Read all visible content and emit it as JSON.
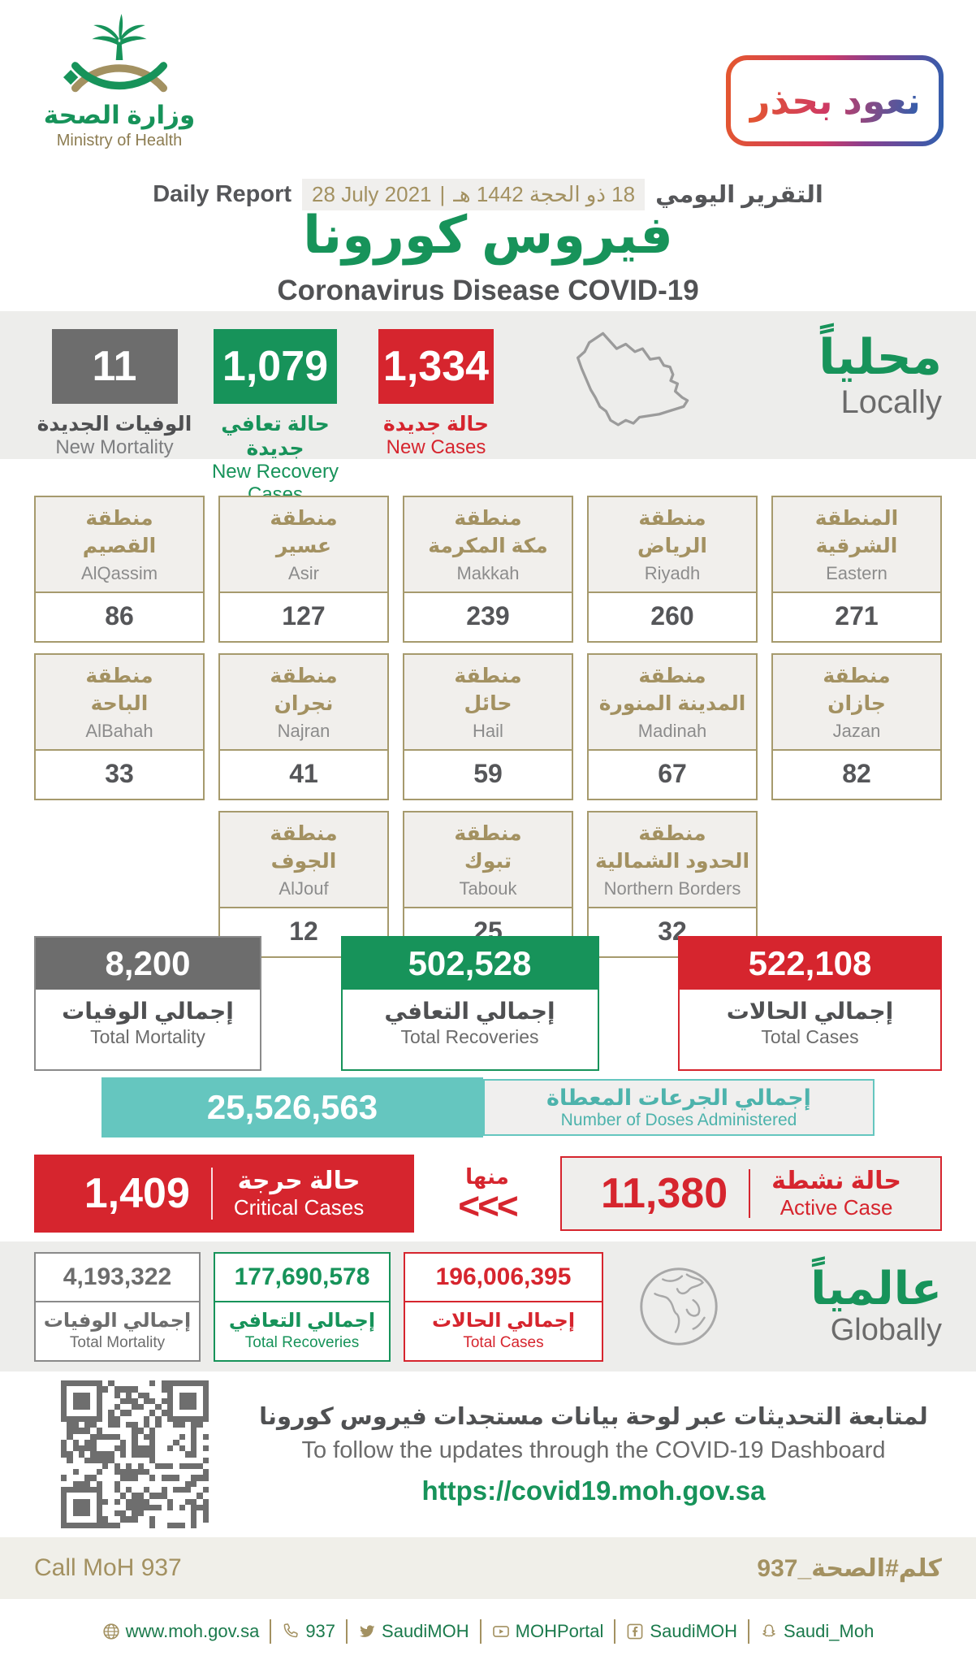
{
  "colors": {
    "green": "#17935a",
    "red": "#d6252e",
    "gold": "#a39161",
    "gray": "#6d6d6d",
    "teal": "#65c6bf"
  },
  "header": {
    "ministry_ar": "وزارة الصحة",
    "ministry_en": "Ministry of Health",
    "badge_ar": "نعود بحذر",
    "daily_report_en": "Daily Report",
    "date_en": "28 July 2021",
    "date_ar": "18 ذو الحجة 1442 هـ",
    "daily_report_ar": "التقرير اليومي",
    "title_ar": "فيروس كورونا",
    "title_en": "Coronavirus Disease COVID-19"
  },
  "locally": {
    "label_ar": "محلياً",
    "label_en": "Locally",
    "stats": [
      {
        "value": "11",
        "label_ar": "الوفيات الجديدة",
        "label_en": "New Mortality",
        "color": "#6d6d6d"
      },
      {
        "value": "1,079",
        "label_ar": "حالة تعافي جديدة",
        "label_en": "New Recovery Cases",
        "color": "#17935a"
      },
      {
        "value": "1,334",
        "label_ar": "حالة جديدة",
        "label_en": "New Cases",
        "color": "#d6252e"
      }
    ]
  },
  "regions": {
    "rows": [
      [
        {
          "a1": "منطقة",
          "a2": "القصيم",
          "en": "AlQassim",
          "v": "86"
        },
        {
          "a1": "منطقة",
          "a2": "عسير",
          "en": "Asir",
          "v": "127"
        },
        {
          "a1": "منطقة",
          "a2": "مكة المكرمة",
          "en": "Makkah",
          "v": "239"
        },
        {
          "a1": "منطقة",
          "a2": "الرياض",
          "en": "Riyadh",
          "v": "260"
        },
        {
          "a1": "المنطقة",
          "a2": "الشرقية",
          "en": "Eastern",
          "v": "271"
        }
      ],
      [
        {
          "a1": "منطقة",
          "a2": "الباحة",
          "en": "AlBahah",
          "v": "33"
        },
        {
          "a1": "منطقة",
          "a2": "نجران",
          "en": "Najran",
          "v": "41"
        },
        {
          "a1": "منطقة",
          "a2": "حائل",
          "en": "Hail",
          "v": "59"
        },
        {
          "a1": "منطقة",
          "a2": "المدينة المنورة",
          "en": "Madinah",
          "v": "67"
        },
        {
          "a1": "منطقة",
          "a2": "جازان",
          "en": "Jazan",
          "v": "82"
        }
      ],
      [
        {
          "a1": "منطقة",
          "a2": "الجوف",
          "en": "AlJouf",
          "v": "12"
        },
        {
          "a1": "منطقة",
          "a2": "تبوك",
          "en": "Tabouk",
          "v": "25"
        },
        {
          "a1": "منطقة",
          "a2": "الحدود الشمالية",
          "en": "Northern Borders",
          "v": "32"
        }
      ]
    ]
  },
  "totals": [
    {
      "value": "8,200",
      "label_ar": "إجمالي الوفيات",
      "label_en": "Total Mortality"
    },
    {
      "value": "502,528",
      "label_ar": "إجمالي التعافي",
      "label_en": "Total Recoveries"
    },
    {
      "value": "522,108",
      "label_ar": "إجمالي الحالات",
      "label_en": "Total Cases"
    }
  ],
  "doses": {
    "value": "25,526,563",
    "label_ar": "إجمالي الجرعات المعطاة",
    "label_en": "Number of Doses Administered"
  },
  "critical": {
    "value": "1,409",
    "label_ar": "حالة حرجة",
    "label_en": "Critical Cases",
    "of_which_ar": "منها",
    "chevrons": "<<<"
  },
  "active": {
    "value": "11,380",
    "label_ar": "حالة نشطة",
    "label_en": "Active Case"
  },
  "globally": {
    "label_ar": "عالمياً",
    "label_en": "Globally",
    "stats": [
      {
        "value": "4,193,322",
        "label_ar": "إجمالي الوفيات",
        "label_en": "Total Mortality"
      },
      {
        "value": "177,690,578",
        "label_ar": "إجمالي التعافي",
        "label_en": "Total Recoveries"
      },
      {
        "value": "196,006,395",
        "label_ar": "إجمالي الحالات",
        "label_en": "Total Cases"
      }
    ]
  },
  "dashboard": {
    "line_ar": "لمتابعة التحديثات عبر لوحة بيانات مستجدات فيروس كورونا",
    "line_en": "To follow the updates through the COVID-19 Dashboard",
    "url": "https://covid19.moh.gov.sa"
  },
  "callband": {
    "en": "Call MoH 937",
    "ar": "كلم#الصحة_937"
  },
  "footer": {
    "links": [
      {
        "icon": "globe-icon",
        "text": "www.moh.gov.sa"
      },
      {
        "icon": "phone-icon",
        "text": "937"
      },
      {
        "icon": "twitter-icon",
        "text": "SaudiMOH"
      },
      {
        "icon": "youtube-icon",
        "text": "MOHPortal"
      },
      {
        "icon": "facebook-icon",
        "text": "SaudiMOH"
      },
      {
        "icon": "snapchat-icon",
        "text": "Saudi_Moh"
      }
    ]
  }
}
